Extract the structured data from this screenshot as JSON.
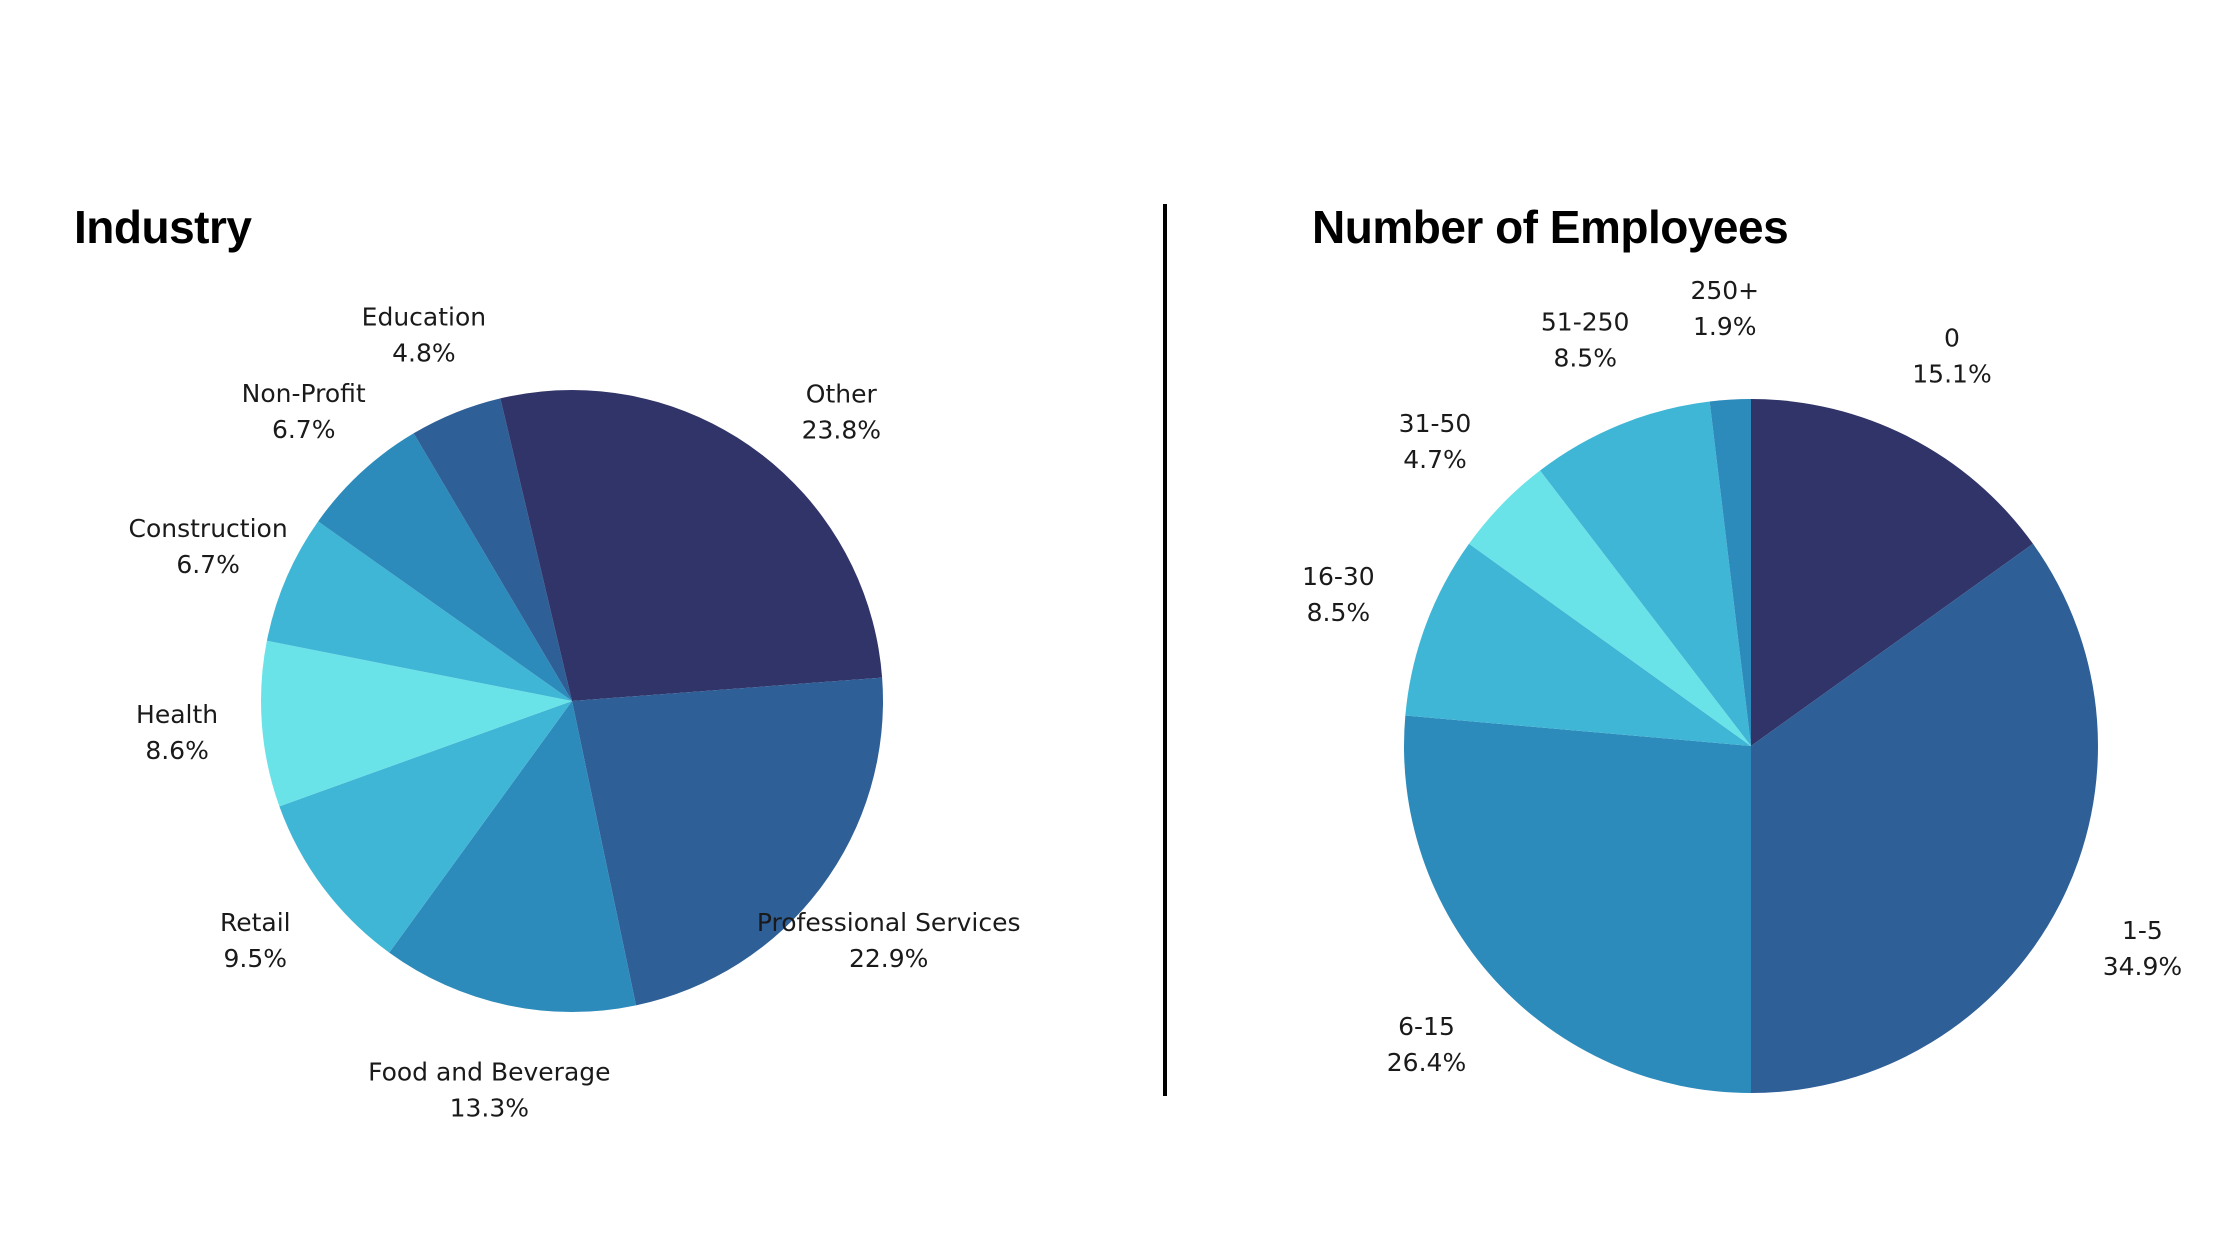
{
  "colors": {
    "navy": "#303468",
    "blue": "#2e5f97",
    "medium_blue": "#2d8bbb",
    "sky": "#40b6d6",
    "cyan": "#69e3e8",
    "divider": "#000000"
  },
  "chart_data": [
    {
      "type": "pie",
      "title": "Industry",
      "slices": [
        {
          "label": "Other",
          "value": 23.8,
          "display": "23.8%",
          "color": "#303468"
        },
        {
          "label": "Professional Services",
          "value": 22.9,
          "display": "22.9%",
          "color": "#2e5f97"
        },
        {
          "label": "Food and Beverage",
          "value": 13.3,
          "display": "13.3%",
          "color": "#2d8bbb"
        },
        {
          "label": "Retail",
          "value": 9.5,
          "display": "9.5%",
          "color": "#40b6d6"
        },
        {
          "label": "Health",
          "value": 8.6,
          "display": "8.6%",
          "color": "#69e3e8"
        },
        {
          "label": "Construction",
          "value": 6.7,
          "display": "6.7%",
          "color": "#40b6d6"
        },
        {
          "label": "Non-Profit",
          "value": 6.7,
          "display": "6.7%",
          "color": "#2d8bbb"
        },
        {
          "label": "Education",
          "value": 4.8,
          "display": "4.8%",
          "color": "#2e5f97"
        },
        {
          "label": "",
          "value": 3.7,
          "display": "",
          "color": "#303468"
        }
      ]
    },
    {
      "type": "pie",
      "title": "Number of Employees",
      "slices": [
        {
          "label": "0",
          "value": 15.1,
          "display": "15.1%",
          "color": "#303468"
        },
        {
          "label": "1-5",
          "value": 34.9,
          "display": "34.9%",
          "color": "#2e5f97"
        },
        {
          "label": "6-15",
          "value": 26.4,
          "display": "26.4%",
          "color": "#2d8bbb"
        },
        {
          "label": "16-30",
          "value": 8.5,
          "display": "8.5%",
          "color": "#40b6d6"
        },
        {
          "label": "31-50",
          "value": 4.7,
          "display": "4.7%",
          "color": "#69e3e8"
        },
        {
          "label": "51-250",
          "value": 8.5,
          "display": "8.5%",
          "color": "#40b6d6"
        },
        {
          "label": "250+",
          "value": 1.9,
          "display": "1.9%",
          "color": "#2d8bbb"
        }
      ]
    }
  ]
}
